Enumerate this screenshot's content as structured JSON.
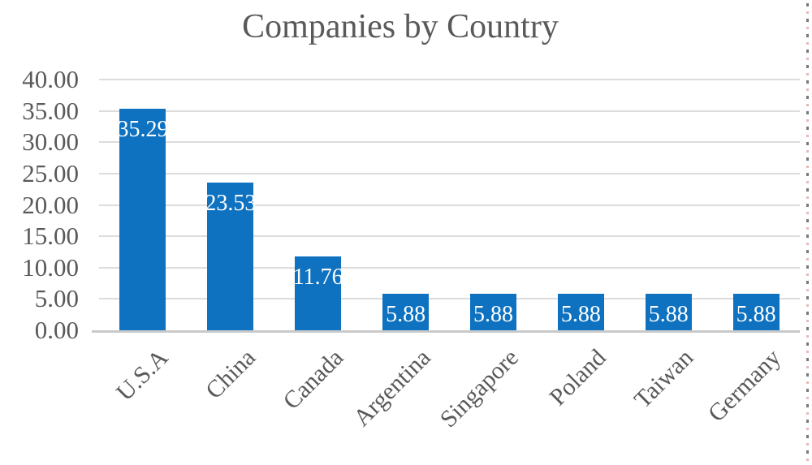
{
  "chart_data": {
    "type": "bar",
    "title": "Companies by Country",
    "categories": [
      "U.S.A",
      "China",
      "Canada",
      "Argentina",
      "Singapore",
      "Poland",
      "Taiwan",
      "Germany"
    ],
    "values": [
      35.29,
      23.53,
      11.76,
      5.88,
      5.88,
      5.88,
      5.88,
      5.88
    ],
    "bar_labels": [
      "35.29",
      "23.53",
      "11.76",
      "5.88",
      "5.88",
      "5.88",
      "5.88",
      "5.88"
    ],
    "xlabel": "",
    "ylabel": "",
    "ylim": [
      0,
      40
    ],
    "y_tick_interval": 5,
    "y_tick_labels": [
      "40.00",
      "35.00",
      "30.00",
      "25.00",
      "20.00",
      "15.00",
      "10.00",
      "5.00",
      "0.00"
    ],
    "grid": "horizontal",
    "legend": "none",
    "data_label_position": "inside-end",
    "x_label_rotation_deg": 45,
    "colors": {
      "bar": "#0e72c0",
      "bar_label_text": "#ffffff",
      "title_text": "#595959",
      "axis_text": "#595959",
      "gridline": "#dcdcdc",
      "axis_line": "#c9c9c9",
      "selection_dash": "#7a7a7a",
      "selection_dash_accent": "#e9b8b8",
      "background": "#ffffff"
    }
  }
}
